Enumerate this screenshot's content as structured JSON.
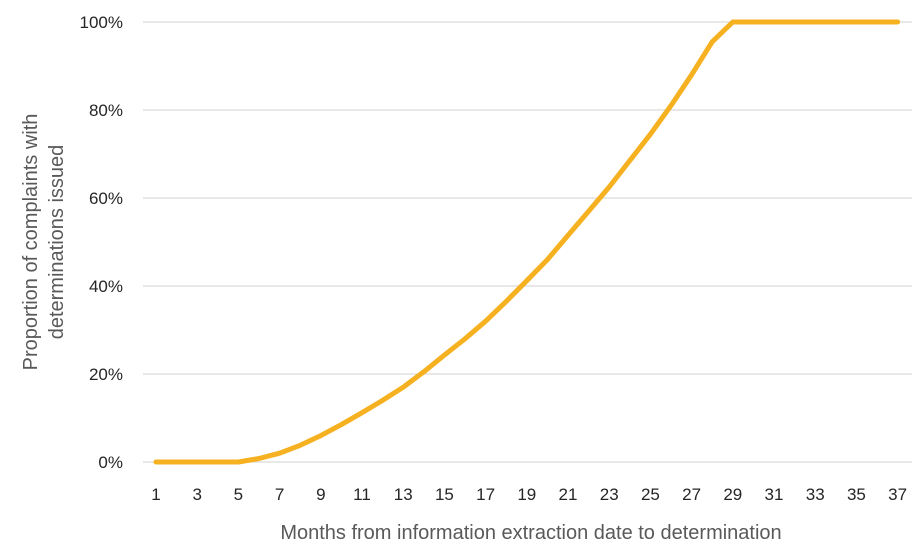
{
  "chart_data": {
    "type": "line",
    "title": "",
    "xlabel": "Months from information extraction date to determination",
    "ylabel_lines": [
      "Proportion of complaints with",
      "determinations issued"
    ],
    "x": [
      1,
      2,
      3,
      4,
      5,
      6,
      7,
      8,
      9,
      10,
      11,
      12,
      13,
      14,
      15,
      16,
      17,
      18,
      19,
      20,
      21,
      22,
      23,
      24,
      25,
      26,
      27,
      28,
      29,
      30,
      31,
      32,
      33,
      34,
      35,
      36,
      37
    ],
    "x_tick_labels": [
      "1",
      "3",
      "5",
      "7",
      "9",
      "11",
      "13",
      "15",
      "17",
      "19",
      "21",
      "23",
      "25",
      "27",
      "29",
      "31",
      "33",
      "35",
      "37"
    ],
    "y_tick_labels": [
      "0%",
      "20%",
      "40%",
      "60%",
      "80%",
      "100%"
    ],
    "ylim": [
      0,
      100
    ],
    "grid": true,
    "legend": "none",
    "series": [
      {
        "color": "#F5B120",
        "values": [
          0,
          0,
          0,
          0,
          0,
          0.8,
          2,
          3.8,
          6,
          8.5,
          11.2,
          14,
          17,
          20.5,
          24.3,
          28,
          32,
          36.5,
          41.2,
          46,
          51.5,
          57,
          62.5,
          68.5,
          74.5,
          81,
          88,
          95.5,
          100,
          100,
          100,
          100,
          100,
          100,
          100,
          100,
          100
        ]
      }
    ]
  }
}
